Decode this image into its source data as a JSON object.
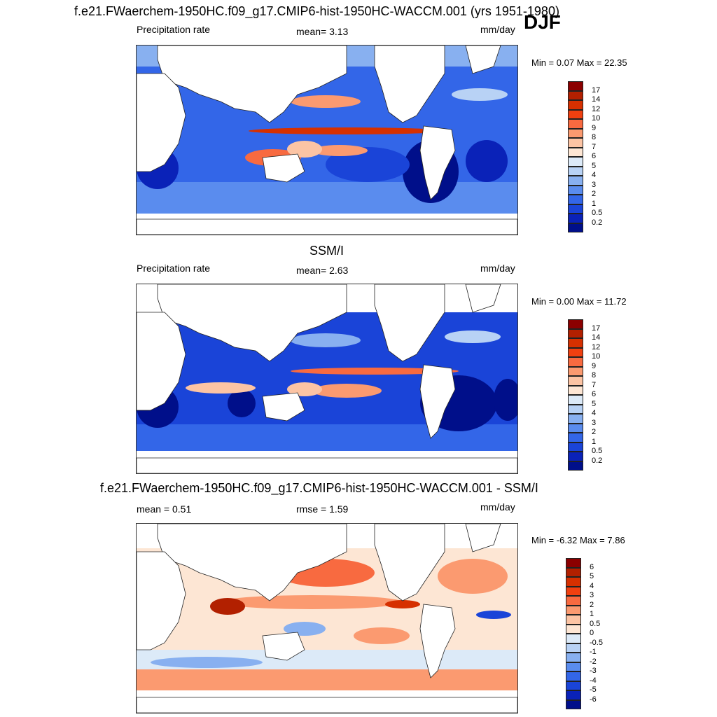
{
  "season": "DJF",
  "panels": [
    {
      "title": "f.e21.FWaerchem-1950HC.f09_g17.CMIP6-hist-1950HC-WACCM.001 (yrs 1951-1980)",
      "left_label": "Precipitation rate",
      "center_label": "mean=   3.13",
      "units": "mm/day",
      "minmax": "Min =   0.07 Max =  22.35",
      "colorbar": {
        "labels": [
          "17",
          "14",
          "12",
          "10",
          "9",
          "8",
          "7",
          "6",
          "5",
          "4",
          "3",
          "2",
          "1",
          "0.5",
          "0.2"
        ],
        "colors": [
          "#8b0000",
          "#b22000",
          "#d63000",
          "#f04010",
          "#f86a40",
          "#fb9a70",
          "#fcc4a4",
          "#fde6d4",
          "#dceaf8",
          "#b8d2f5",
          "#88b0f0",
          "#5a8cee",
          "#3366e8",
          "#1a44d8",
          "#0a22b8",
          "#000f8a"
        ]
      }
    },
    {
      "title": "SSM/I",
      "left_label": "Precipitation rate",
      "center_label": "mean=   2.63",
      "units": "mm/day",
      "minmax": "Min =   0.00 Max =  11.72",
      "colorbar": {
        "labels": [
          "17",
          "14",
          "12",
          "10",
          "9",
          "8",
          "7",
          "6",
          "5",
          "4",
          "3",
          "2",
          "1",
          "0.5",
          "0.2"
        ],
        "colors": [
          "#8b0000",
          "#b22000",
          "#d63000",
          "#f04010",
          "#f86a40",
          "#fb9a70",
          "#fcc4a4",
          "#fde6d4",
          "#dceaf8",
          "#b8d2f5",
          "#88b0f0",
          "#5a8cee",
          "#3366e8",
          "#1a44d8",
          "#0a22b8",
          "#000f8a"
        ]
      }
    },
    {
      "title": "f.e21.FWaerchem-1950HC.f09_g17.CMIP6-hist-1950HC-WACCM.001 - SSM/I",
      "left_label": "mean =   0.51",
      "center_label": "rmse =   1.59",
      "units": "mm/day",
      "minmax": "Min =  -6.32 Max =   7.86",
      "colorbar": {
        "labels": [
          "6",
          "5",
          "4",
          "3",
          "2",
          "1",
          "0.5",
          "0",
          "-0.5",
          "-1",
          "-2",
          "-3",
          "-4",
          "-5",
          "-6"
        ],
        "colors": [
          "#8b0000",
          "#b22000",
          "#d63000",
          "#f04010",
          "#f86a40",
          "#fb9a70",
          "#fcc4a4",
          "#fde6d4",
          "#dceaf8",
          "#b8d2f5",
          "#88b0f0",
          "#5a8cee",
          "#3366e8",
          "#1a44d8",
          "#0a22b8",
          "#000f8a"
        ]
      }
    }
  ]
}
